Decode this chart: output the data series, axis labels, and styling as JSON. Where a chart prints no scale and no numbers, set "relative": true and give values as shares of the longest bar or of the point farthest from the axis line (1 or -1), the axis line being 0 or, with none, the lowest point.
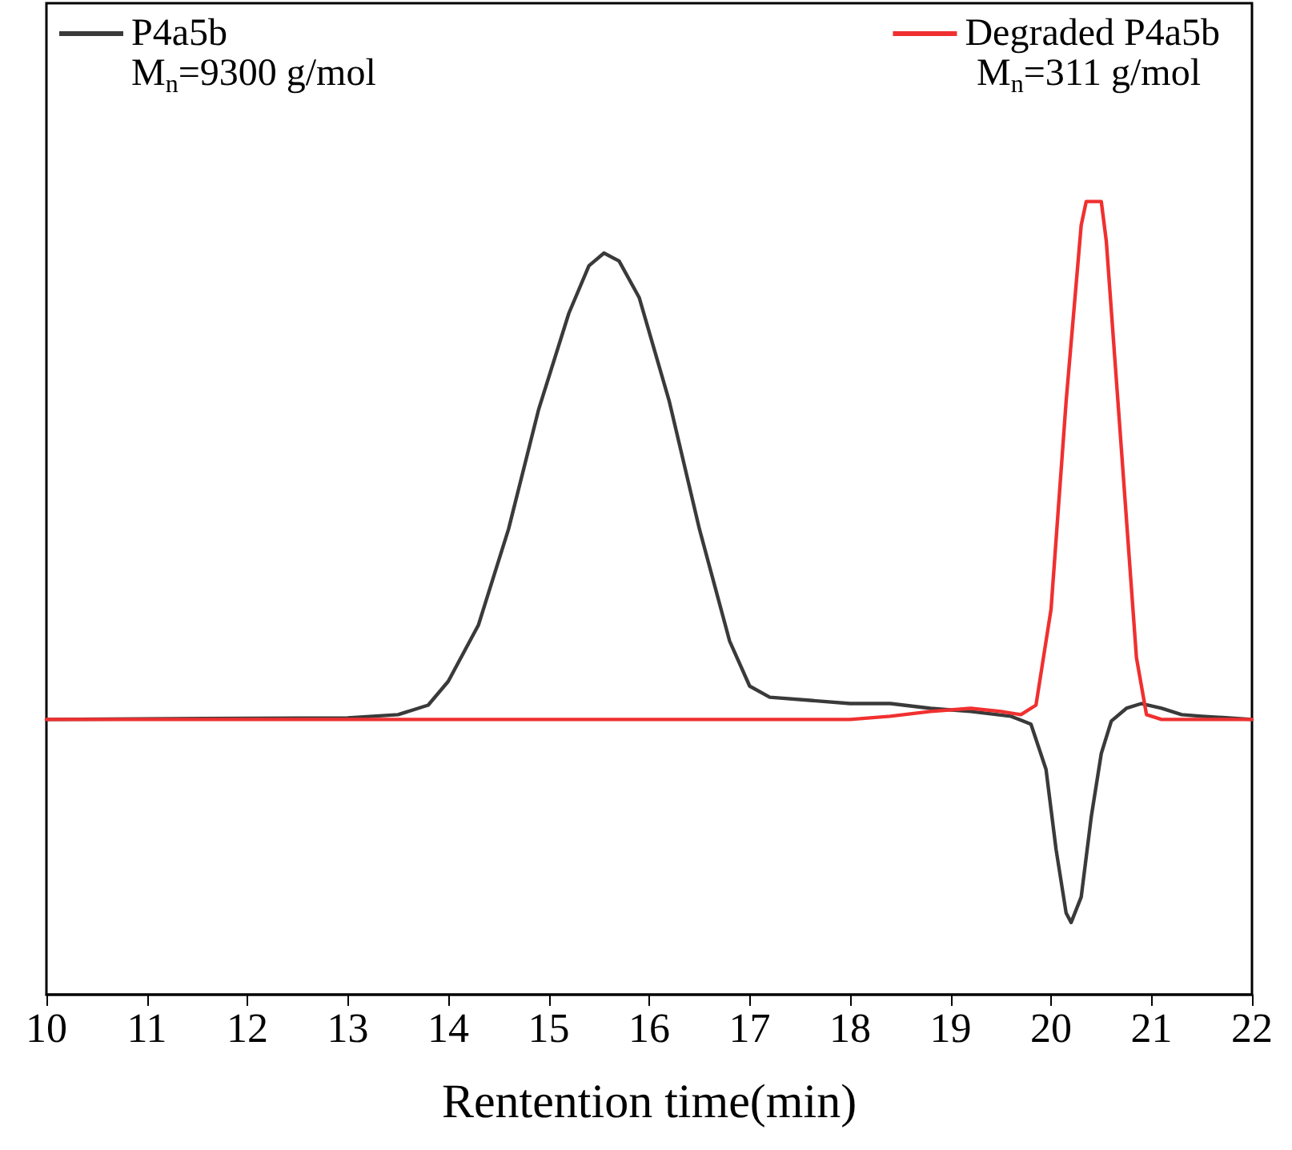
{
  "chart_data": {
    "type": "line",
    "xlabel": "Rentention time(min)",
    "relative": true,
    "xlim": [
      10,
      22
    ],
    "xticks": [
      10,
      11,
      12,
      13,
      14,
      15,
      16,
      17,
      18,
      19,
      20,
      21,
      22
    ],
    "legend": "top",
    "tick_labels": "x",
    "marker": "none",
    "line_style": "solid",
    "grid": false,
    "annotations": [
      "M$_{n}$=9300 g/mol",
      "M$_{n}$=311 g/mol"
    ],
    "series": [
      {
        "name": "P4a5b",
        "color": "#3a3a3a",
        "x": [
          10,
          13,
          13.5,
          13.8,
          14,
          14.3,
          14.6,
          14.9,
          15.2,
          15.4,
          15.55,
          15.7,
          15.9,
          16.2,
          16.5,
          16.8,
          17,
          17.2,
          17.6,
          18,
          18.4,
          18.8,
          19.2,
          19.6,
          19.8,
          19.95,
          20.05,
          20.15,
          20.2,
          20.3,
          20.4,
          20.5,
          20.6,
          20.75,
          20.9,
          21.1,
          21.3,
          21.5,
          22
        ],
        "values": [
          0.347,
          0.349,
          0.353,
          0.365,
          0.395,
          0.466,
          0.587,
          0.738,
          0.859,
          0.919,
          0.935,
          0.925,
          0.879,
          0.748,
          0.587,
          0.446,
          0.389,
          0.375,
          0.371,
          0.367,
          0.367,
          0.361,
          0.357,
          0.351,
          0.341,
          0.284,
          0.183,
          0.103,
          0.091,
          0.123,
          0.224,
          0.304,
          0.345,
          0.361,
          0.367,
          0.361,
          0.353,
          0.351,
          0.347
        ]
      },
      {
        "name": "Degraded P4a5b",
        "color": "#f03030",
        "x": [
          10,
          18,
          18.4,
          18.8,
          19.2,
          19.5,
          19.7,
          19.85,
          20,
          20.15,
          20.3,
          20.35,
          20.5,
          20.55,
          20.7,
          20.85,
          20.95,
          21.1,
          22
        ],
        "values": [
          0.347,
          0.347,
          0.351,
          0.357,
          0.361,
          0.357,
          0.353,
          0.365,
          0.486,
          0.748,
          0.97,
          1,
          1,
          0.95,
          0.688,
          0.425,
          0.353,
          0.347,
          0.347
        ]
      }
    ]
  }
}
